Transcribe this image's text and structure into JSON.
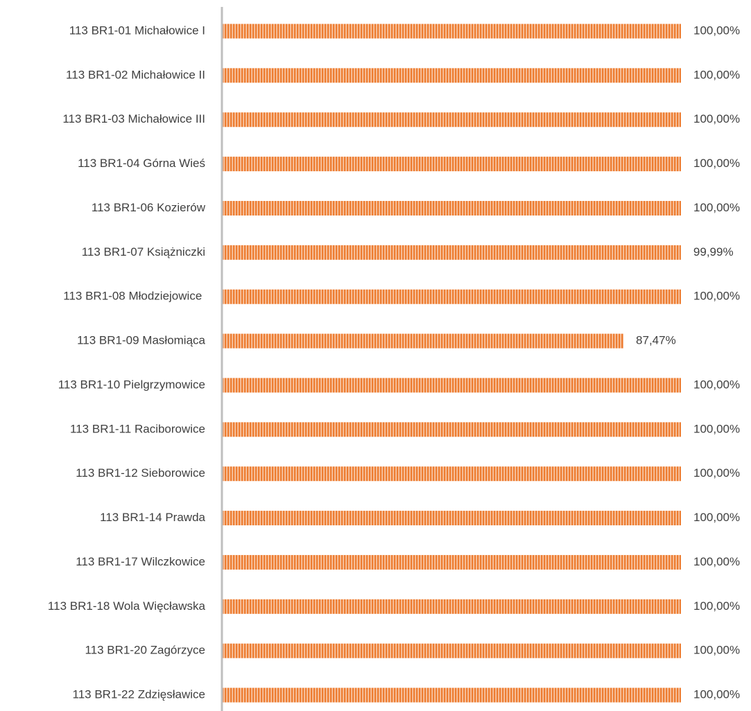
{
  "chart_data": {
    "type": "hbar",
    "categories": [
      "113 BR1-01 Michałowice I",
      "113 BR1-02 Michałowice II",
      "113 BR1-03 Michałowice III",
      "113 BR1-04 Górna Wieś",
      "113 BR1-06 Kozierów",
      "113 BR1-07 Książniczki",
      "113 BR1-08 Młodziejowice ",
      "113 BR1-09 Masłomiąca",
      "113 BR1-10 Pielgrzymowice",
      "113 BR1-11 Raciborowice",
      "113 BR1-12 Sieborowice",
      "113 BR1-14 Prawda",
      "113 BR1-17 Wilczkowice",
      "113 BR1-18 Wola Więcławska",
      "113 BR1-20 Zagórzyce",
      "113 BR1-22 Zdzięsławice"
    ],
    "values": [
      100,
      100,
      100,
      100,
      100,
      99.99,
      100,
      87.47,
      100,
      100,
      100,
      100,
      100,
      100,
      100,
      100
    ],
    "value_labels": [
      "100,00%",
      "100,00%",
      "100,00%",
      "100,00%",
      "100,00%",
      "99,99%",
      "100,00%",
      "87,47%",
      "100,00%",
      "100,00%",
      "100,00%",
      "100,00%",
      "100,00%",
      "100,00%",
      "100,00%",
      "100,00%"
    ],
    "color": "#ed7d31",
    "xlim": [
      0,
      100
    ]
  }
}
